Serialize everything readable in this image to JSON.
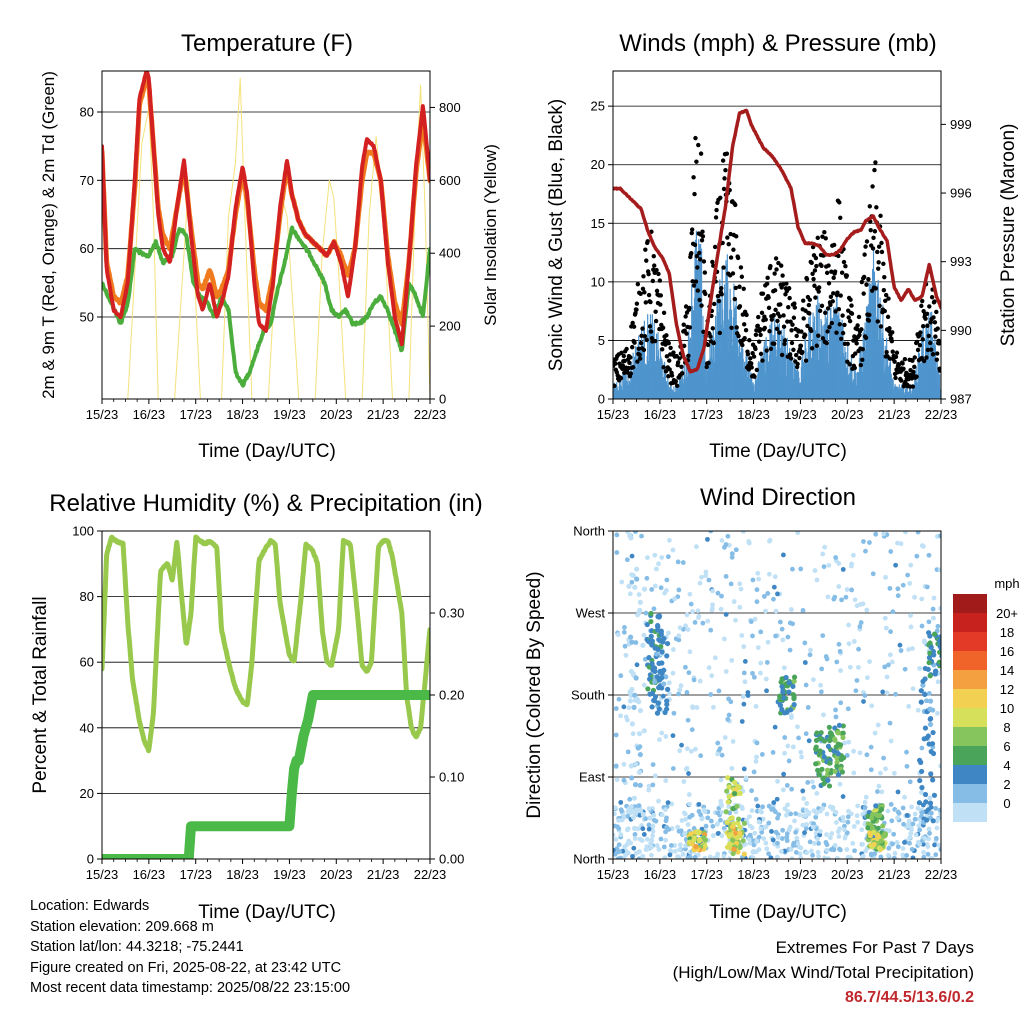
{
  "x_ticks": [
    "15/23",
    "16/23",
    "17/23",
    "18/23",
    "19/23",
    "20/23",
    "21/23",
    "22/23"
  ],
  "x_label": "Time (Day/UTC)",
  "colors": {
    "temp2m": "#d32020",
    "temp9m": "#f07a1e",
    "dewpoint": "#4bae3c",
    "solar": "#f5e27a",
    "wind": "#4f94cd",
    "gust": "#000000",
    "pressure": "#a51c1c",
    "rh": "#98c94c",
    "precip": "#4bb947"
  },
  "chart_data": [
    {
      "type": "line",
      "title": "Temperature (F)",
      "xlabel": "Time (Day/UTC)",
      "ylabel": "2m & 9m T (Red, Orange) & 2m Td (Green)",
      "ylabel_right": "Solar Insolation (Yellow)",
      "xlim": [
        0,
        7
      ],
      "ylim": [
        38,
        86
      ],
      "yticks": [
        50,
        60,
        70,
        80
      ],
      "ylim_right": [
        0,
        900
      ],
      "yticks_right": [
        0,
        200,
        400,
        600,
        800
      ],
      "grid": true,
      "series": [
        {
          "name": "2m T",
          "color": "#d32020",
          "x": [
            0,
            0.1,
            0.25,
            0.4,
            0.55,
            0.7,
            0.8,
            0.95,
            1.0,
            1.1,
            1.2,
            1.3,
            1.45,
            1.6,
            1.75,
            1.9,
            2.05,
            2.15,
            2.3,
            2.45,
            2.55,
            2.7,
            2.85,
            3.0,
            3.1,
            3.25,
            3.35,
            3.5,
            3.65,
            3.8,
            3.95,
            4.05,
            4.2,
            4.35,
            4.5,
            4.65,
            4.8,
            4.95,
            5.1,
            5.25,
            5.4,
            5.55,
            5.65,
            5.8,
            5.95,
            6.1,
            6.25,
            6.4,
            6.55,
            6.7,
            6.85,
            7.0
          ],
          "y": [
            75,
            57,
            51,
            50,
            55,
            70,
            82,
            86,
            85,
            75,
            65,
            60,
            58,
            66,
            73,
            62,
            53,
            51,
            55,
            50,
            52,
            56,
            66,
            72,
            68,
            55,
            49,
            48,
            55,
            66,
            73,
            68,
            64,
            62,
            61,
            60,
            59,
            61,
            58,
            53,
            60,
            72,
            76,
            75,
            70,
            58,
            50,
            46,
            58,
            72,
            81,
            70
          ]
        },
        {
          "name": "9m T",
          "color": "#f07a1e",
          "x": [
            0,
            0.1,
            0.25,
            0.4,
            0.55,
            0.7,
            0.8,
            0.95,
            1.0,
            1.1,
            1.2,
            1.3,
            1.45,
            1.6,
            1.75,
            1.9,
            2.05,
            2.15,
            2.3,
            2.45,
            2.55,
            2.7,
            2.85,
            3.0,
            3.1,
            3.25,
            3.35,
            3.5,
            3.65,
            3.8,
            3.95,
            4.05,
            4.2,
            4.35,
            4.5,
            4.65,
            4.8,
            4.95,
            5.1,
            5.25,
            5.4,
            5.55,
            5.65,
            5.8,
            5.95,
            6.1,
            6.25,
            6.4,
            6.55,
            6.7,
            6.85,
            7.0
          ],
          "y": [
            74,
            58,
            53,
            52,
            56,
            69,
            81,
            85,
            84,
            75,
            66,
            62,
            60,
            66,
            72,
            63,
            55,
            54,
            57,
            53,
            54,
            57,
            65,
            71,
            67,
            57,
            52,
            51,
            56,
            65,
            72,
            68,
            64,
            62,
            61,
            60,
            59,
            61,
            59,
            56,
            60,
            70,
            74,
            74,
            70,
            59,
            52,
            49,
            58,
            71,
            79,
            70
          ]
        },
        {
          "name": "2m Td",
          "color": "#4bae3c",
          "x": [
            0,
            0.2,
            0.4,
            0.55,
            0.7,
            0.9,
            1.0,
            1.15,
            1.3,
            1.5,
            1.65,
            1.8,
            1.95,
            2.1,
            2.25,
            2.4,
            2.55,
            2.7,
            2.85,
            3.0,
            3.15,
            3.3,
            3.45,
            3.6,
            3.75,
            3.9,
            4.05,
            4.25,
            4.45,
            4.6,
            4.75,
            4.9,
            5.05,
            5.2,
            5.35,
            5.5,
            5.65,
            5.8,
            5.95,
            6.1,
            6.25,
            6.4,
            6.55,
            6.7,
            6.85,
            7.0
          ],
          "y": [
            55,
            52,
            49,
            52,
            60,
            59,
            59,
            61,
            58,
            59,
            63,
            62,
            55,
            53,
            52,
            50,
            53,
            51,
            42,
            40,
            42,
            45,
            48,
            49,
            54,
            58,
            63,
            61,
            59,
            57,
            55,
            51,
            50,
            51,
            49,
            49,
            50,
            52,
            53,
            51,
            48,
            45,
            55,
            53,
            50,
            60
          ]
        },
        {
          "name": "Solar",
          "color": "#f5e27a",
          "axis": "right",
          "x": [
            0.55,
            0.7,
            0.85,
            1.0,
            1.1,
            1.2,
            1.55,
            1.7,
            1.85,
            1.95,
            2.1,
            2.55,
            2.7,
            2.85,
            2.95,
            3.05,
            3.2,
            3.55,
            3.7,
            3.85,
            3.95,
            4.05,
            4.2,
            4.55,
            4.7,
            4.85,
            4.95,
            5.05,
            5.2,
            5.55,
            5.7,
            5.85,
            5.95,
            6.05,
            6.2,
            6.55,
            6.7,
            6.8,
            6.9,
            7.0
          ],
          "y": [
            0,
            350,
            700,
            800,
            500,
            0,
            0,
            300,
            600,
            400,
            0,
            0,
            500,
            650,
            880,
            500,
            0,
            0,
            350,
            550,
            500,
            300,
            0,
            0,
            400,
            600,
            550,
            350,
            0,
            0,
            500,
            720,
            600,
            400,
            0,
            0,
            600,
            860,
            500,
            0
          ]
        }
      ]
    },
    {
      "type": "scatter",
      "title": "Winds (mph) & Pressure (mb)",
      "xlabel": "Time (Day/UTC)",
      "ylabel": "Sonic Wind & Gust (Blue, Black)",
      "ylabel_right": "Station Pressure (Maroon)",
      "xlim": [
        0,
        7
      ],
      "ylim": [
        0,
        28
      ],
      "yticks": [
        0,
        5,
        10,
        15,
        20,
        25
      ],
      "ylim_right": [
        987,
        1001.333
      ],
      "yticks_right": [
        987,
        990,
        993,
        996,
        999
      ],
      "grid": true,
      "series": [
        {
          "name": "Pressure",
          "color": "#a51c1c",
          "axis": "right",
          "x": [
            0,
            0.15,
            0.3,
            0.45,
            0.6,
            0.75,
            0.9,
            1.05,
            1.2,
            1.35,
            1.5,
            1.65,
            1.8,
            1.95,
            2.1,
            2.25,
            2.4,
            2.55,
            2.7,
            2.85,
            2.95,
            3.05,
            3.2,
            3.4,
            3.6,
            3.8,
            3.95,
            4.1,
            4.25,
            4.4,
            4.55,
            4.7,
            4.85,
            5.0,
            5.15,
            5.3,
            5.4,
            5.55,
            5.7,
            5.85,
            6.0,
            6.15,
            6.3,
            6.45,
            6.6,
            6.75,
            6.9,
            7.0
          ],
          "y": [
            996.2,
            996.2,
            995.9,
            995.6,
            995.3,
            994.3,
            993.6,
            993.2,
            992.5,
            990.3,
            988.9,
            988.2,
            988.3,
            989.3,
            991.5,
            993.5,
            995.4,
            998.0,
            999.5,
            999.6,
            999.0,
            998.6,
            998.0,
            997.6,
            997.0,
            996.2,
            994.5,
            993.8,
            993.8,
            993.7,
            993.3,
            993.3,
            993.5,
            994.0,
            994.3,
            994.4,
            994.8,
            995.0,
            994.4,
            993.9,
            991.9,
            991.3,
            991.8,
            991.3,
            991.5,
            992.9,
            991.5,
            991.0
          ]
        },
        {
          "name": "Gust envelope",
          "color": "#000000",
          "x": [
            0,
            0.3,
            0.6,
            0.8,
            1.0,
            1.2,
            1.4,
            1.6,
            1.75,
            1.9,
            2.0,
            2.2,
            2.4,
            2.6,
            2.8,
            3.0,
            3.2,
            3.4,
            3.6,
            3.8,
            4.0,
            4.2,
            4.4,
            4.6,
            4.8,
            5.0,
            5.2,
            5.4,
            5.6,
            5.8,
            6.0,
            6.2,
            6.4,
            6.6,
            6.8,
            7.0
          ],
          "y": [
            3,
            4,
            10,
            13,
            9,
            4,
            3,
            8,
            20,
            18,
            5,
            14,
            19,
            15,
            8,
            4,
            9,
            11,
            10,
            8,
            6,
            11,
            13,
            12,
            16,
            9,
            5,
            12,
            18,
            10,
            4,
            3,
            3,
            9,
            10,
            3
          ]
        },
        {
          "name": "Wind",
          "color": "#4f94cd",
          "x": [
            0,
            0.3,
            0.6,
            0.8,
            1.0,
            1.2,
            1.4,
            1.6,
            1.75,
            1.9,
            2.0,
            2.2,
            2.4,
            2.6,
            2.8,
            3.0,
            3.2,
            3.4,
            3.6,
            3.8,
            4.0,
            4.2,
            4.4,
            4.6,
            4.8,
            5.0,
            5.2,
            5.4,
            5.6,
            5.8,
            6.0,
            6.2,
            6.4,
            6.6,
            6.8,
            7.0
          ],
          "y": [
            1,
            2,
            5,
            6,
            4,
            1,
            1,
            4,
            12,
            10,
            2,
            7,
            10,
            8,
            4,
            1,
            4,
            6,
            5,
            4,
            2,
            6,
            7,
            6,
            8,
            4,
            2,
            6,
            11,
            5,
            1,
            1,
            1,
            5,
            6,
            1
          ]
        }
      ]
    },
    {
      "type": "line",
      "title": "Relative Humidity (%) & Precipitation (in)",
      "xlabel": "Time (Day/UTC)",
      "ylabel": "Percent & Total Rainfall",
      "xlim": [
        0,
        7
      ],
      "ylim": [
        0,
        100
      ],
      "yticks": [
        0,
        20,
        40,
        60,
        80,
        100
      ],
      "ylim_right": [
        0,
        0.4
      ],
      "yticks_right": [
        "0.00",
        "0.10",
        "0.20",
        "0.30"
      ],
      "grid": true,
      "series": [
        {
          "name": "RH",
          "color": "#98c94c",
          "x": [
            0,
            0.1,
            0.2,
            0.3,
            0.45,
            0.55,
            0.65,
            0.8,
            0.9,
            1.0,
            1.1,
            1.25,
            1.4,
            1.5,
            1.6,
            1.7,
            1.8,
            1.9,
            2.0,
            2.1,
            2.2,
            2.3,
            2.45,
            2.55,
            2.7,
            2.85,
            3.0,
            3.1,
            3.2,
            3.35,
            3.5,
            3.6,
            3.7,
            3.8,
            3.9,
            4.0,
            4.1,
            4.25,
            4.35,
            4.5,
            4.6,
            4.7,
            4.8,
            4.9,
            5.05,
            5.15,
            5.3,
            5.45,
            5.55,
            5.65,
            5.75,
            5.9,
            6.0,
            6.1,
            6.2,
            6.4,
            6.5,
            6.6,
            6.7,
            6.8,
            6.9,
            7.0
          ],
          "y": [
            58,
            93,
            98,
            97,
            96,
            72,
            55,
            42,
            36,
            33,
            45,
            88,
            90,
            85,
            97,
            80,
            65,
            75,
            98,
            97,
            96,
            97,
            95,
            70,
            60,
            52,
            48,
            47,
            60,
            91,
            95,
            97,
            96,
            78,
            70,
            62,
            60,
            80,
            96,
            94,
            90,
            70,
            60,
            59,
            70,
            97,
            96,
            75,
            59,
            57,
            60,
            95,
            97,
            97,
            92,
            75,
            50,
            40,
            37,
            40,
            55,
            70
          ]
        },
        {
          "name": "Precip",
          "color": "#4bb947",
          "axis": "right",
          "x": [
            0,
            1.85,
            1.9,
            4.0,
            4.05,
            4.1,
            4.15,
            4.2,
            4.3,
            4.4,
            4.5,
            4.6,
            7.0
          ],
          "y": [
            0,
            0,
            0.04,
            0.04,
            0.08,
            0.11,
            0.12,
            0.12,
            0.15,
            0.17,
            0.2,
            0.2,
            0.2
          ]
        }
      ]
    },
    {
      "type": "scatter",
      "title": "Wind Direction",
      "xlabel": "Time (Day/UTC)",
      "ylabel": "Direction (Colored By Speed)",
      "xlim": [
        0,
        7
      ],
      "ylim": [
        0,
        360
      ],
      "ytick_labels": [
        "North",
        "East",
        "South",
        "West",
        "North"
      ],
      "yticks": [
        0,
        90,
        180,
        270,
        360
      ],
      "grid": true,
      "legend": {
        "title": "mph",
        "labels": [
          "20+",
          "18",
          "16",
          "14",
          "12",
          "10",
          "8",
          "6",
          "4",
          "2",
          "0"
        ],
        "colors": [
          "#a11b1b",
          "#c8221f",
          "#e23a26",
          "#f0642a",
          "#f5a040",
          "#f2d152",
          "#d7e05a",
          "#86c45e",
          "#4aa55a",
          "#3e86c4",
          "#85bde6",
          "#bfe0f5"
        ]
      },
      "clusters": [
        {
          "x": 0.5,
          "dir_min": 0,
          "dir_max": 360,
          "speed": 1
        },
        {
          "x": 0.9,
          "dir_min": 180,
          "dir_max": 270,
          "speed": 5
        },
        {
          "x": 1.0,
          "dir_min": 160,
          "dir_max": 260,
          "speed": 4
        },
        {
          "x": 1.8,
          "dir_min": 10,
          "dir_max": 30,
          "speed": 11
        },
        {
          "x": 2.55,
          "dir_min": 10,
          "dir_max": 90,
          "speed": 10
        },
        {
          "x": 2.65,
          "dir_min": 5,
          "dir_max": 40,
          "speed": 12
        },
        {
          "x": 3.7,
          "dir_min": 160,
          "dir_max": 200,
          "speed": 6
        },
        {
          "x": 4.5,
          "dir_min": 80,
          "dir_max": 140,
          "speed": 6
        },
        {
          "x": 4.75,
          "dir_min": 90,
          "dir_max": 150,
          "speed": 7
        },
        {
          "x": 5.6,
          "dir_min": 20,
          "dir_max": 60,
          "speed": 8
        },
        {
          "x": 5.65,
          "dir_min": 10,
          "dir_max": 30,
          "speed": 11
        },
        {
          "x": 6.7,
          "dir_min": 40,
          "dir_max": 220,
          "speed": 4
        },
        {
          "x": 6.9,
          "dir_min": 200,
          "dir_max": 250,
          "speed": 5
        }
      ]
    }
  ],
  "info": {
    "location": "Location: Edwards",
    "elevation": "Station elevation: 209.668 m",
    "latlon": "Station lat/lon: 44.3218; -75.2441",
    "created": "Figure created on Fri, 2025-08-22, at 23:42 UTC",
    "recent": "Most recent data timestamp: 2025/08/22 23:15:00"
  },
  "extremes": {
    "title": "Extremes For Past 7 Days",
    "subtitle": "(High/Low/Max Wind/Total Precipitation)",
    "values": "86.7/44.5/13.6/0.2"
  }
}
